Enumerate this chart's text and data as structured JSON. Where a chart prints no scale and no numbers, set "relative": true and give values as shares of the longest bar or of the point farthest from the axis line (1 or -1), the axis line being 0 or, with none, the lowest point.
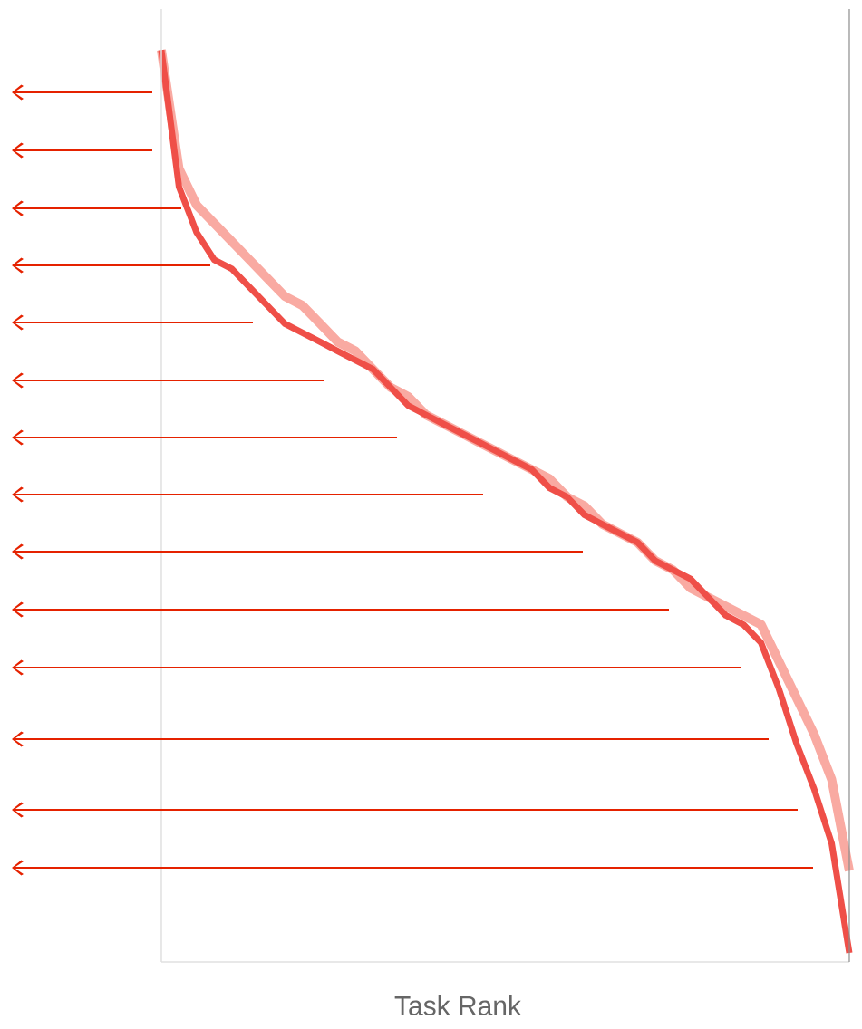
{
  "chart_data": {
    "type": "line",
    "relative": true,
    "xlabel": "Task Rank",
    "categories": [
      null,
      null,
      null,
      null,
      null,
      null,
      null,
      null,
      null,
      null,
      null,
      null,
      null,
      null,
      null,
      null,
      null,
      null,
      null,
      null,
      null,
      null,
      null,
      null,
      null,
      null,
      null,
      null,
      null,
      null,
      null,
      null,
      null,
      null,
      null,
      null,
      null,
      null,
      null,
      null
    ],
    "series": [
      {
        "color": "#f9aaa2",
        "values": [
          1.0,
          0.87,
          0.83,
          0.81,
          0.79,
          0.77,
          0.75,
          0.73,
          0.72,
          0.7,
          0.68,
          0.67,
          0.65,
          0.63,
          0.62,
          0.6,
          0.59,
          0.58,
          0.57,
          0.56,
          0.55,
          0.54,
          0.53,
          0.51,
          0.5,
          0.48,
          0.47,
          0.46,
          0.44,
          0.43,
          0.41,
          0.4,
          0.39,
          0.38,
          0.37,
          0.33,
          0.29,
          0.25,
          0.2,
          0.1
        ]
      },
      {
        "color": "#ef4f48",
        "values": [
          1.0,
          0.85,
          0.8,
          0.77,
          0.76,
          0.74,
          0.72,
          0.7,
          0.69,
          0.68,
          0.67,
          0.66,
          0.65,
          0.63,
          0.61,
          0.6,
          0.59,
          0.58,
          0.57,
          0.56,
          0.55,
          0.54,
          0.52,
          0.51,
          0.49,
          0.48,
          0.47,
          0.46,
          0.44,
          0.43,
          0.42,
          0.4,
          0.38,
          0.37,
          0.35,
          0.3,
          0.24,
          0.19,
          0.13,
          0.01
        ]
      }
    ]
  }
}
